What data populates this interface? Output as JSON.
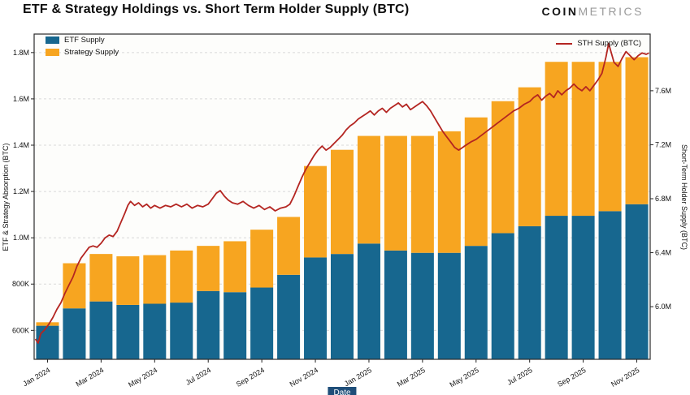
{
  "header": {
    "title": "ETF & Strategy Holdings vs. Short Term Holder Supply (BTC)",
    "logo_coin": "COIN",
    "logo_metrics": "METRICS"
  },
  "colors": {
    "etf_bar": "#17678f",
    "strategy_bar": "#f7a520",
    "sth_line": "#b42521",
    "grid": "#d9d9d9",
    "plot_border": "#2b2b2b",
    "xlabel_badge_bg": "#1f4e79"
  },
  "chart_data": {
    "type": "bar",
    "title": "ETF & Strategy Holdings vs. Short Term Holder Supply (BTC)",
    "xlabel": "Date",
    "ylabel_left": "ETF & Strategy Absorption (BTC)",
    "ylabel_right": "Short-Term Holder Supply (BTC)",
    "grid": "horizontal-dashed",
    "legend_position": "top-left and top-right inside plot",
    "categories": [
      "Jan 2024",
      "Feb 2024",
      "Mar 2024",
      "Apr 2024",
      "May 2024",
      "Jun 2024",
      "Jul 2024",
      "Aug 2024",
      "Sep 2024",
      "Oct 2024",
      "Nov 2024",
      "Dec 2024",
      "Jan 2025",
      "Feb 2025",
      "Mar 2025",
      "Apr 2025",
      "May 2025",
      "Jun 2025",
      "Jul 2025",
      "Aug 2025",
      "Sep 2025",
      "Oct 2025",
      "Nov 2025"
    ],
    "x_ticks": [
      "Jan 2024",
      "Mar 2024",
      "May 2024",
      "Jul 2024",
      "Sep 2024",
      "Nov 2024",
      "Jan 2025",
      "Mar 2025",
      "May 2025",
      "Jul 2025",
      "Sep 2025",
      "Nov 2025"
    ],
    "series": [
      {
        "name": "ETF Supply",
        "type": "bar",
        "stack": "supply",
        "axis": "left",
        "color": "#17678f",
        "values": [
          620000,
          695000,
          725000,
          710000,
          715000,
          720000,
          770000,
          765000,
          785000,
          840000,
          915000,
          930000,
          975000,
          945000,
          935000,
          935000,
          965000,
          1020000,
          1050000,
          1095000,
          1095000,
          1115000,
          1145000
        ]
      },
      {
        "name": "Strategy Supply",
        "type": "bar",
        "stack": "supply",
        "axis": "left",
        "color": "#f7a520",
        "values": [
          15000,
          195000,
          205000,
          210000,
          210000,
          225000,
          195000,
          220000,
          250000,
          250000,
          395000,
          450000,
          465000,
          495000,
          505000,
          525000,
          555000,
          570000,
          600000,
          665000,
          665000,
          645000,
          635000
        ]
      },
      {
        "name": "STH Supply (BTC)",
        "type": "line",
        "axis": "right",
        "color": "#b42521",
        "points_m": [
          [
            -0.45,
            5.76
          ],
          [
            -0.35,
            5.73
          ],
          [
            -0.25,
            5.8
          ],
          [
            -0.1,
            5.83
          ],
          [
            0.05,
            5.87
          ],
          [
            0.2,
            5.92
          ],
          [
            0.35,
            5.98
          ],
          [
            0.5,
            6.03
          ],
          [
            0.65,
            6.1
          ],
          [
            0.8,
            6.16
          ],
          [
            0.95,
            6.22
          ],
          [
            1.1,
            6.3
          ],
          [
            1.25,
            6.36
          ],
          [
            1.4,
            6.4
          ],
          [
            1.55,
            6.44
          ],
          [
            1.7,
            6.45
          ],
          [
            1.85,
            6.44
          ],
          [
            2.0,
            6.47
          ],
          [
            2.15,
            6.51
          ],
          [
            2.3,
            6.53
          ],
          [
            2.45,
            6.52
          ],
          [
            2.6,
            6.56
          ],
          [
            2.75,
            6.63
          ],
          [
            2.9,
            6.7
          ],
          [
            3.0,
            6.75
          ],
          [
            3.1,
            6.78
          ],
          [
            3.25,
            6.75
          ],
          [
            3.4,
            6.77
          ],
          [
            3.55,
            6.74
          ],
          [
            3.7,
            6.76
          ],
          [
            3.85,
            6.73
          ],
          [
            4.0,
            6.75
          ],
          [
            4.2,
            6.73
          ],
          [
            4.4,
            6.75
          ],
          [
            4.6,
            6.74
          ],
          [
            4.8,
            6.76
          ],
          [
            5.0,
            6.74
          ],
          [
            5.2,
            6.76
          ],
          [
            5.4,
            6.73
          ],
          [
            5.6,
            6.75
          ],
          [
            5.8,
            6.74
          ],
          [
            6.0,
            6.76
          ],
          [
            6.15,
            6.8
          ],
          [
            6.3,
            6.84
          ],
          [
            6.45,
            6.86
          ],
          [
            6.6,
            6.82
          ],
          [
            6.75,
            6.79
          ],
          [
            6.9,
            6.77
          ],
          [
            7.1,
            6.76
          ],
          [
            7.3,
            6.78
          ],
          [
            7.5,
            6.75
          ],
          [
            7.7,
            6.73
          ],
          [
            7.9,
            6.75
          ],
          [
            8.1,
            6.72
          ],
          [
            8.3,
            6.74
          ],
          [
            8.5,
            6.71
          ],
          [
            8.7,
            6.73
          ],
          [
            8.9,
            6.74
          ],
          [
            9.05,
            6.76
          ],
          [
            9.2,
            6.82
          ],
          [
            9.35,
            6.89
          ],
          [
            9.5,
            6.96
          ],
          [
            9.65,
            7.02
          ],
          [
            9.8,
            7.07
          ],
          [
            9.95,
            7.12
          ],
          [
            10.1,
            7.16
          ],
          [
            10.25,
            7.19
          ],
          [
            10.4,
            7.16
          ],
          [
            10.55,
            7.18
          ],
          [
            10.7,
            7.21
          ],
          [
            10.85,
            7.24
          ],
          [
            11.0,
            7.27
          ],
          [
            11.15,
            7.31
          ],
          [
            11.3,
            7.34
          ],
          [
            11.45,
            7.36
          ],
          [
            11.6,
            7.39
          ],
          [
            11.75,
            7.41
          ],
          [
            11.9,
            7.43
          ],
          [
            12.05,
            7.45
          ],
          [
            12.2,
            7.42
          ],
          [
            12.35,
            7.45
          ],
          [
            12.5,
            7.47
          ],
          [
            12.65,
            7.44
          ],
          [
            12.8,
            7.47
          ],
          [
            12.95,
            7.49
          ],
          [
            13.1,
            7.51
          ],
          [
            13.25,
            7.48
          ],
          [
            13.4,
            7.5
          ],
          [
            13.55,
            7.46
          ],
          [
            13.7,
            7.48
          ],
          [
            13.85,
            7.5
          ],
          [
            14.0,
            7.52
          ],
          [
            14.15,
            7.49
          ],
          [
            14.3,
            7.45
          ],
          [
            14.45,
            7.4
          ],
          [
            14.6,
            7.35
          ],
          [
            14.75,
            7.3
          ],
          [
            14.9,
            7.26
          ],
          [
            15.05,
            7.22
          ],
          [
            15.2,
            7.18
          ],
          [
            15.35,
            7.16
          ],
          [
            15.5,
            7.18
          ],
          [
            15.65,
            7.2
          ],
          [
            15.8,
            7.22
          ],
          [
            16.0,
            7.24
          ],
          [
            16.2,
            7.27
          ],
          [
            16.4,
            7.3
          ],
          [
            16.6,
            7.33
          ],
          [
            16.8,
            7.36
          ],
          [
            17.0,
            7.39
          ],
          [
            17.2,
            7.42
          ],
          [
            17.4,
            7.45
          ],
          [
            17.6,
            7.47
          ],
          [
            17.8,
            7.5
          ],
          [
            18.0,
            7.52
          ],
          [
            18.15,
            7.55
          ],
          [
            18.3,
            7.57
          ],
          [
            18.45,
            7.53
          ],
          [
            18.6,
            7.56
          ],
          [
            18.75,
            7.58
          ],
          [
            18.9,
            7.55
          ],
          [
            19.05,
            7.6
          ],
          [
            19.2,
            7.57
          ],
          [
            19.35,
            7.6
          ],
          [
            19.5,
            7.62
          ],
          [
            19.65,
            7.65
          ],
          [
            19.8,
            7.62
          ],
          [
            19.95,
            7.6
          ],
          [
            20.1,
            7.63
          ],
          [
            20.25,
            7.6
          ],
          [
            20.4,
            7.64
          ],
          [
            20.55,
            7.68
          ],
          [
            20.7,
            7.73
          ],
          [
            20.85,
            7.85
          ],
          [
            20.95,
            7.95
          ],
          [
            21.05,
            7.88
          ],
          [
            21.15,
            7.81
          ],
          [
            21.3,
            7.78
          ],
          [
            21.45,
            7.84
          ],
          [
            21.6,
            7.89
          ],
          [
            21.75,
            7.86
          ],
          [
            21.9,
            7.83
          ],
          [
            22.05,
            7.86
          ],
          [
            22.2,
            7.88
          ],
          [
            22.35,
            7.87
          ],
          [
            22.45,
            7.88
          ]
        ]
      }
    ],
    "left_axis": {
      "ticks": [
        "600K",
        "800K",
        "1.0M",
        "1.2M",
        "1.4M",
        "1.6M",
        "1.8M"
      ],
      "tick_values": [
        600000,
        800000,
        1000000,
        1200000,
        1400000,
        1600000,
        1800000
      ],
      "min": 475000,
      "max": 1880000
    },
    "right_axis": {
      "ticks": [
        "6.0M",
        "6.4M",
        "6.8M",
        "7.2M",
        "7.6M"
      ],
      "tick_values": [
        6000000,
        6400000,
        6800000,
        7200000,
        7600000
      ],
      "min": 5610000,
      "max": 8020000
    }
  }
}
